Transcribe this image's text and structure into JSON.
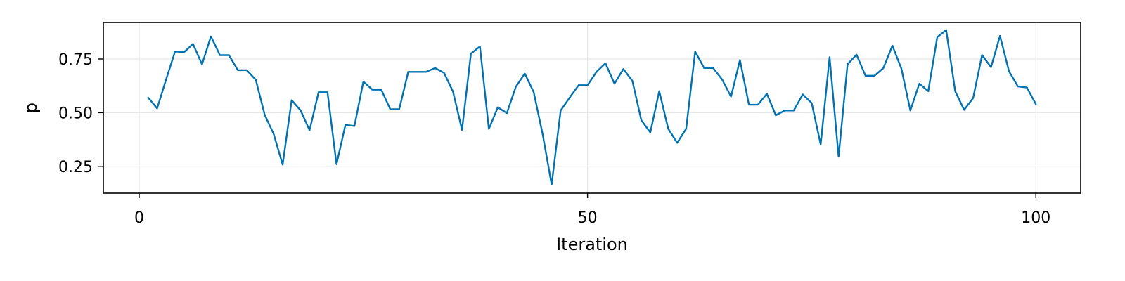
{
  "chart_data": {
    "type": "line",
    "xlabel": "Iteration",
    "ylabel": "p",
    "xlim": [
      -4,
      105
    ],
    "ylim": [
      0.125,
      0.92
    ],
    "xticks": [
      0,
      50,
      100
    ],
    "xtick_labels": [
      "0",
      "50",
      "100"
    ],
    "yticks": [
      0.25,
      0.5,
      0.75
    ],
    "ytick_labels": [
      "0.25",
      "0.50",
      "0.75"
    ],
    "grid": true,
    "legend": "none",
    "series": [
      {
        "color": "#0072b2",
        "x": [
          1,
          2,
          3,
          4,
          5,
          6,
          7,
          8,
          9,
          10,
          11,
          12,
          13,
          14,
          15,
          16,
          17,
          18,
          19,
          20,
          21,
          22,
          23,
          24,
          25,
          26,
          27,
          28,
          29,
          30,
          31,
          32,
          33,
          34,
          35,
          36,
          37,
          38,
          39,
          40,
          41,
          42,
          43,
          44,
          45,
          46,
          47,
          48,
          49,
          50,
          51,
          52,
          53,
          54,
          55,
          56,
          57,
          58,
          59,
          60,
          61,
          62,
          63,
          64,
          65,
          66,
          67,
          68,
          69,
          70,
          71,
          72,
          73,
          74,
          75,
          76,
          77,
          78,
          79,
          80,
          81,
          82,
          83,
          84,
          85,
          86,
          87,
          88,
          89,
          90,
          91,
          92,
          93,
          94,
          95,
          96,
          97,
          98,
          99,
          100
        ],
        "y": [
          0.57,
          0.52,
          0.655,
          0.785,
          0.782,
          0.82,
          0.725,
          0.855,
          0.768,
          0.768,
          0.698,
          0.698,
          0.653,
          0.49,
          0.4,
          0.258,
          0.558,
          0.51,
          0.418,
          0.595,
          0.595,
          0.26,
          0.443,
          0.438,
          0.645,
          0.607,
          0.607,
          0.516,
          0.516,
          0.69,
          0.69,
          0.69,
          0.708,
          0.685,
          0.598,
          0.42,
          0.775,
          0.808,
          0.424,
          0.525,
          0.498,
          0.62,
          0.682,
          0.595,
          0.398,
          0.165,
          0.51,
          0.57,
          0.628,
          0.628,
          0.69,
          0.73,
          0.635,
          0.703,
          0.648,
          0.465,
          0.408,
          0.6,
          0.425,
          0.36,
          0.425,
          0.785,
          0.708,
          0.708,
          0.655,
          0.575,
          0.745,
          0.537,
          0.537,
          0.588,
          0.488,
          0.51,
          0.51,
          0.585,
          0.545,
          0.352,
          0.758,
          0.295,
          0.725,
          0.77,
          0.672,
          0.672,
          0.708,
          0.812,
          0.705,
          0.51,
          0.635,
          0.6,
          0.852,
          0.885,
          0.6,
          0.513,
          0.568,
          0.768,
          0.712,
          0.858,
          0.693,
          0.622,
          0.617,
          0.54
        ]
      }
    ]
  }
}
